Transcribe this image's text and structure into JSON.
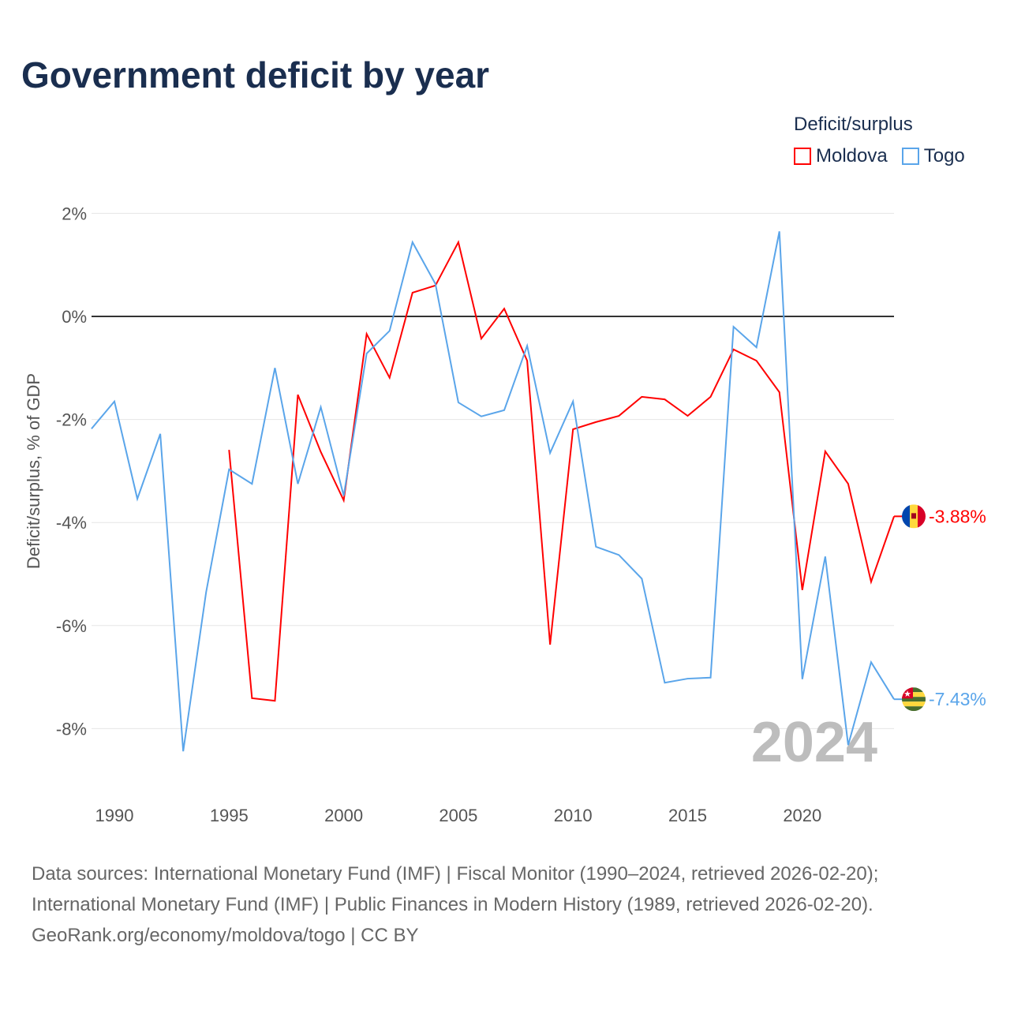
{
  "title": "Government deficit by year",
  "legend": {
    "title": "Deficit/surplus",
    "items": [
      {
        "name": "Moldova",
        "color": "#ff0000"
      },
      {
        "name": "Togo",
        "color": "#5aa5ea"
      }
    ]
  },
  "year_watermark": "2024",
  "sources": [
    "Data sources: International Monetary Fund (IMF) | Fiscal Monitor (1990–2024, retrieved 2026-02-20);",
    "International Monetary Fund (IMF) | Public Finances in Modern History (1989, retrieved 2026-02-20).",
    "GeoRank.org/economy/moldova/togo | CC BY"
  ],
  "chart_data": {
    "type": "line",
    "title": "Government deficit by year",
    "xlabel": "",
    "ylabel": "Deficit/surplus, % of GDP",
    "xlim": [
      1989,
      2024
    ],
    "ylim": [
      -9.3,
      2.2
    ],
    "x_ticks": [
      1990,
      1995,
      2000,
      2005,
      2010,
      2015,
      2020
    ],
    "y_ticks": [
      2,
      0,
      -2,
      -4,
      -6,
      -8
    ],
    "y_tick_labels": [
      "2%",
      "0%",
      "-2%",
      "-4%",
      "-6%",
      "-8%"
    ],
    "grid": true,
    "legend_position": "top-right",
    "series": [
      {
        "name": "Moldova",
        "color": "#ff0000",
        "end_label": "-3.88%",
        "flag": "moldova-flag",
        "x": [
          1995,
          1996,
          1997,
          1998,
          1999,
          2000,
          2001,
          2002,
          2003,
          2004,
          2005,
          2006,
          2007,
          2008,
          2009,
          2010,
          2011,
          2012,
          2013,
          2014,
          2015,
          2016,
          2017,
          2018,
          2019,
          2020,
          2021,
          2022,
          2023,
          2024
        ],
        "values": [
          -2.59,
          -7.41,
          -7.46,
          -1.52,
          -2.63,
          -3.57,
          -0.34,
          -1.19,
          0.46,
          0.6,
          1.44,
          -0.43,
          0.15,
          -0.86,
          -6.37,
          -2.19,
          -2.05,
          -1.93,
          -1.56,
          -1.61,
          -1.93,
          -1.56,
          -0.64,
          -0.86,
          -1.47,
          -5.31,
          -2.62,
          -3.25,
          -5.15,
          -3.88
        ]
      },
      {
        "name": "Togo",
        "color": "#5aa5ea",
        "end_label": "-7.43%",
        "flag": "togo-flag",
        "x": [
          1989,
          1990,
          1991,
          1992,
          1993,
          1994,
          1995,
          1996,
          1997,
          1998,
          1999,
          2000,
          2001,
          2002,
          2003,
          2004,
          2005,
          2006,
          2007,
          2008,
          2009,
          2010,
          2011,
          2012,
          2013,
          2014,
          2015,
          2016,
          2017,
          2018,
          2019,
          2020,
          2021,
          2022,
          2023,
          2024
        ],
        "values": [
          -2.18,
          -1.65,
          -3.54,
          -2.28,
          -8.44,
          -5.35,
          -2.97,
          -3.25,
          -1.0,
          -3.25,
          -1.76,
          -3.48,
          -0.72,
          -0.28,
          1.44,
          0.63,
          -1.67,
          -1.94,
          -1.82,
          -0.57,
          -2.65,
          -1.65,
          -4.47,
          -4.63,
          -5.09,
          -7.11,
          -7.03,
          -7.01,
          -0.2,
          -0.6,
          1.65,
          -7.04,
          -4.66,
          -8.32,
          -6.71,
          -7.43
        ]
      }
    ]
  }
}
